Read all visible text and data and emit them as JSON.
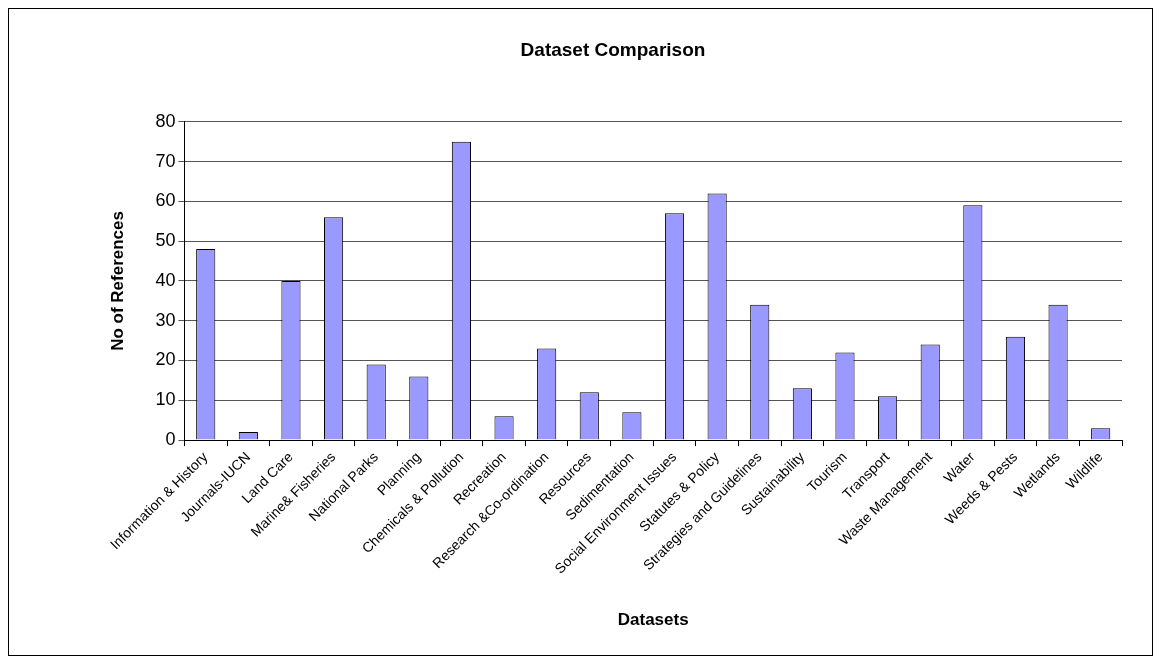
{
  "chart_data": {
    "type": "bar",
    "title": "Dataset Comparison",
    "xlabel": "Datasets",
    "ylabel": "No of References",
    "categories": [
      "Information & History",
      "Journals-IUCN",
      "Land Care",
      "Marine& Fisheries",
      "National Parks",
      "Planning",
      "Chemicals & Pollution",
      "Recreation",
      "Research &Co-ordination",
      "Resources",
      "Sedimentation",
      "Social Environment Issues",
      "Statutes & Policy",
      "Strategies and Guidelines",
      "Sustainability",
      "Tourism",
      "Transport",
      "Waste Management",
      "Water",
      "Weeds & Pests",
      "Wetlands",
      "Wildlife"
    ],
    "values": [
      48,
      2,
      40,
      56,
      19,
      16,
      75,
      6,
      23,
      12,
      7,
      57,
      62,
      34,
      13,
      22,
      11,
      24,
      59,
      26,
      34,
      3
    ],
    "color": "#9999ff",
    "ylim": [
      0,
      80
    ],
    "yticks": [
      0,
      10,
      20,
      30,
      40,
      50,
      60,
      70,
      80
    ],
    "grid": "y"
  }
}
